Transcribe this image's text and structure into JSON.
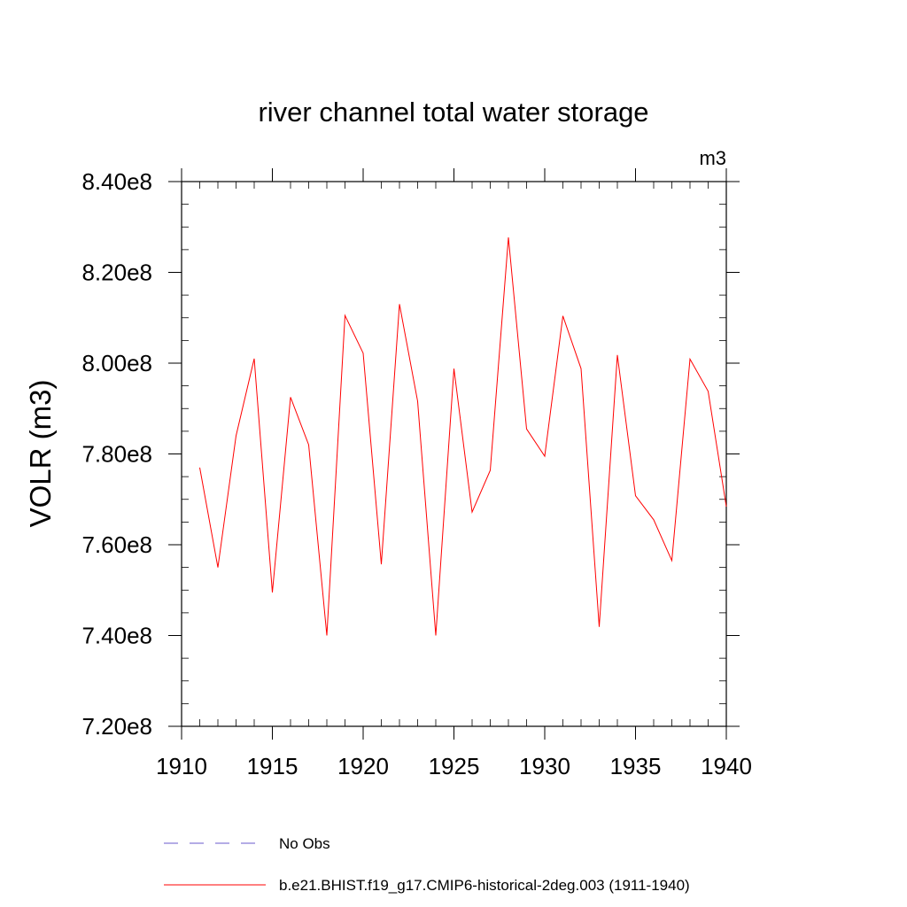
{
  "chart_data": {
    "type": "line",
    "title": "river channel total water storage",
    "units_label": "m3",
    "ylabel": "VOLR  (m3)",
    "xlabel": "",
    "xlim": [
      1910,
      1940
    ],
    "ylim": [
      720000000,
      840000000
    ],
    "x_ticks": [
      1910,
      1915,
      1920,
      1925,
      1930,
      1935,
      1940
    ],
    "x_tick_labels": [
      "1910",
      "1915",
      "1920",
      "1925",
      "1930",
      "1935",
      "1940"
    ],
    "y_ticks": [
      720000000,
      740000000,
      760000000,
      780000000,
      800000000,
      820000000,
      840000000
    ],
    "y_tick_labels": [
      "7.20e8",
      "7.40e8",
      "7.60e8",
      "7.80e8",
      "8.00e8",
      "8.20e8",
      "8.40e8"
    ],
    "grid": false,
    "legend_position": "bottom",
    "series": [
      {
        "name": "b.e21.BHIST.f19_g17.CMIP6-historical-2deg.003 (1911-1940)",
        "color": "#ff0000",
        "style": "solid",
        "x": [
          1911,
          1912,
          1913,
          1914,
          1915,
          1916,
          1917,
          1918,
          1919,
          1920,
          1921,
          1922,
          1923,
          1924,
          1925,
          1926,
          1927,
          1928,
          1929,
          1930,
          1931,
          1932,
          1933,
          1934,
          1935,
          1936,
          1937,
          1938,
          1939,
          1940
        ],
        "y": [
          777000000,
          755000000,
          784000000,
          801000000,
          749500000,
          792500000,
          782000000,
          740000000,
          810500000,
          802200000,
          755700000,
          813000000,
          791600000,
          740000000,
          798800000,
          767200000,
          776400000,
          827700000,
          785500000,
          779500000,
          810400000,
          798800000,
          741900000,
          801800000,
          770800000,
          765500000,
          756500000,
          800900000,
          793800000,
          768400000
        ]
      }
    ],
    "legend": [
      {
        "label": "No Obs",
        "color": "#6a5acd",
        "style": "dashed"
      },
      {
        "label": "b.e21.BHIST.f19_g17.CMIP6-historical-2deg.003 (1911-1940)",
        "color": "#ff0000",
        "style": "solid"
      }
    ]
  }
}
